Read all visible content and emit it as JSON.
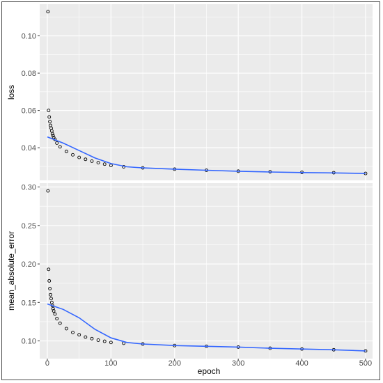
{
  "chart_data": {
    "type": "scatter",
    "xlabel": "epoch",
    "grid": true,
    "x_ticks": [
      0,
      100,
      200,
      300,
      400,
      500
    ],
    "xlim": [
      -12,
      511
    ],
    "colors": {
      "panel_bg": "#ebebeb",
      "grid": "#ffffff",
      "points": "#000000",
      "smooth": "#3366ff"
    },
    "panels": [
      {
        "ylabel": "loss",
        "ylim": [
          0.0225,
          0.117
        ],
        "y_ticks": [
          0.04,
          0.06,
          0.08,
          0.1
        ],
        "y_tick_labels": [
          "0.04",
          "0.06",
          "0.08",
          "0.10"
        ],
        "points": [
          [
            1,
            0.113
          ],
          [
            2,
            0.06
          ],
          [
            3,
            0.0565
          ],
          [
            4,
            0.054
          ],
          [
            5,
            0.052
          ],
          [
            6,
            0.0505
          ],
          [
            7,
            0.049
          ],
          [
            8,
            0.0475
          ],
          [
            9,
            0.0465
          ],
          [
            10,
            0.0455
          ],
          [
            12,
            0.0445
          ],
          [
            15,
            0.0425
          ],
          [
            20,
            0.0405
          ],
          [
            30,
            0.038
          ],
          [
            40,
            0.0362
          ],
          [
            50,
            0.0348
          ],
          [
            60,
            0.0338
          ],
          [
            70,
            0.0328
          ],
          [
            80,
            0.032
          ],
          [
            90,
            0.0312
          ],
          [
            100,
            0.0305
          ],
          [
            120,
            0.0298
          ],
          [
            150,
            0.0292
          ],
          [
            200,
            0.0285
          ],
          [
            250,
            0.0279
          ],
          [
            300,
            0.0274
          ],
          [
            350,
            0.0271
          ],
          [
            400,
            0.0268
          ],
          [
            450,
            0.0266
          ],
          [
            500,
            0.0262
          ]
        ],
        "smooth": [
          [
            0,
            0.0458
          ],
          [
            25,
            0.0425
          ],
          [
            50,
            0.0385
          ],
          [
            75,
            0.0345
          ],
          [
            100,
            0.0315
          ],
          [
            125,
            0.0298
          ],
          [
            150,
            0.0292
          ],
          [
            200,
            0.0285
          ],
          [
            250,
            0.0279
          ],
          [
            300,
            0.0274
          ],
          [
            350,
            0.027
          ],
          [
            400,
            0.0267
          ],
          [
            450,
            0.0265
          ],
          [
            500,
            0.0262
          ]
        ]
      },
      {
        "ylabel": "mean_absolute_error",
        "ylim": [
          0.077,
          0.305
        ],
        "y_ticks": [
          0.1,
          0.15,
          0.2,
          0.25,
          0.3
        ],
        "y_tick_labels": [
          "0.10",
          "0.15",
          "0.20",
          "0.25",
          "0.30"
        ],
        "points": [
          [
            1,
            0.295
          ],
          [
            2,
            0.193
          ],
          [
            3,
            0.178
          ],
          [
            4,
            0.168
          ],
          [
            5,
            0.16
          ],
          [
            6,
            0.155
          ],
          [
            7,
            0.15
          ],
          [
            8,
            0.146
          ],
          [
            9,
            0.142
          ],
          [
            10,
            0.139
          ],
          [
            12,
            0.135
          ],
          [
            15,
            0.129
          ],
          [
            20,
            0.123
          ],
          [
            30,
            0.116
          ],
          [
            40,
            0.111
          ],
          [
            50,
            0.108
          ],
          [
            60,
            0.105
          ],
          [
            70,
            0.103
          ],
          [
            80,
            0.101
          ],
          [
            90,
            0.0995
          ],
          [
            100,
            0.098
          ],
          [
            120,
            0.097
          ],
          [
            150,
            0.096
          ],
          [
            200,
            0.094
          ],
          [
            250,
            0.093
          ],
          [
            300,
            0.092
          ],
          [
            350,
            0.0905
          ],
          [
            400,
            0.0895
          ],
          [
            450,
            0.0885
          ],
          [
            500,
            0.087
          ]
        ],
        "smooth": [
          [
            0,
            0.148
          ],
          [
            25,
            0.141
          ],
          [
            50,
            0.13
          ],
          [
            75,
            0.115
          ],
          [
            100,
            0.104
          ],
          [
            125,
            0.098
          ],
          [
            150,
            0.096
          ],
          [
            200,
            0.094
          ],
          [
            250,
            0.093
          ],
          [
            300,
            0.092
          ],
          [
            350,
            0.0905
          ],
          [
            400,
            0.0895
          ],
          [
            450,
            0.0885
          ],
          [
            500,
            0.087
          ]
        ]
      }
    ]
  }
}
